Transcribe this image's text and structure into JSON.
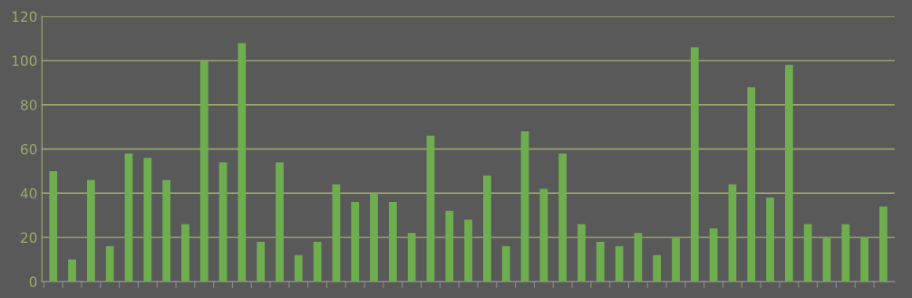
{
  "chart_data": {
    "type": "bar",
    "categories": [
      null,
      null,
      null,
      null,
      null,
      null,
      null,
      null,
      null,
      null,
      null,
      null,
      null,
      null,
      null,
      null,
      null,
      null,
      null,
      null,
      null,
      null,
      null,
      null,
      null,
      null,
      null,
      null,
      null,
      null,
      null,
      null,
      null,
      null,
      null,
      null,
      null,
      null,
      null,
      null,
      null,
      null,
      null,
      null,
      null
    ],
    "values": [
      50,
      10,
      46,
      16,
      58,
      56,
      46,
      26,
      100,
      54,
      108,
      18,
      54,
      12,
      18,
      44,
      36,
      40,
      36,
      22,
      66,
      32,
      28,
      48,
      16,
      68,
      42,
      58,
      26,
      18,
      16,
      22,
      12,
      20,
      106,
      24,
      44,
      88,
      38,
      98,
      26,
      20,
      26,
      20,
      34
    ],
    "color": "#6fae4f",
    "ylim": [
      0,
      120
    ],
    "yticks": [
      0,
      20,
      40,
      60,
      80,
      100,
      120
    ],
    "grid": "y"
  }
}
